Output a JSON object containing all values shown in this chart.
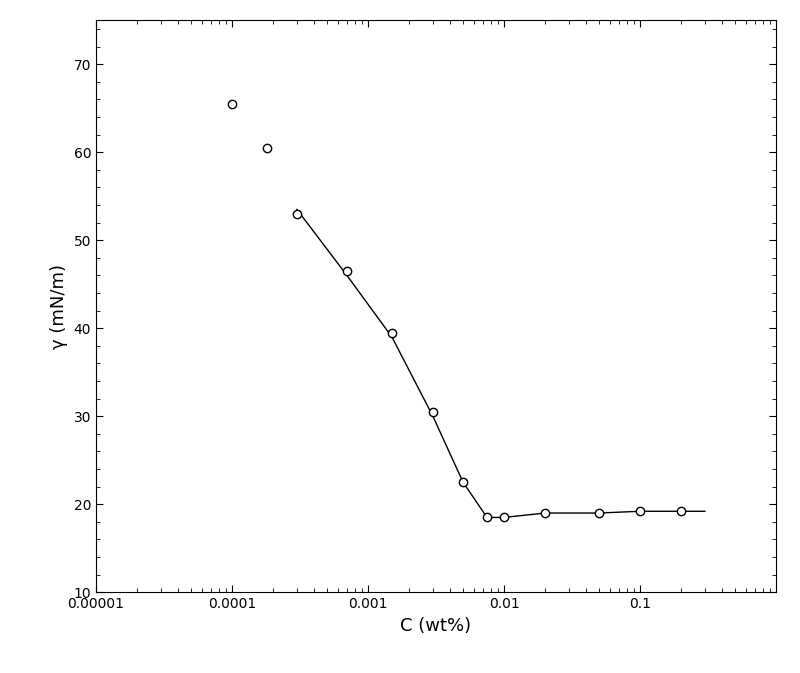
{
  "scatter_x": [
    0.0001,
    0.00018,
    0.0003,
    0.0007,
    0.0015,
    0.003,
    0.005,
    0.0075,
    0.01,
    0.02,
    0.05,
    0.1,
    0.2
  ],
  "scatter_y": [
    65.5,
    60.5,
    53.0,
    46.5,
    39.5,
    30.5,
    22.5,
    18.5,
    18.5,
    19.0,
    19.0,
    19.2,
    19.2
  ],
  "line_x": [
    0.0003,
    0.0007,
    0.0015,
    0.003,
    0.005,
    0.0075,
    0.01,
    0.02,
    0.05,
    0.1,
    0.2,
    0.3
  ],
  "line_y": [
    53.5,
    46.0,
    39.0,
    30.0,
    22.5,
    18.5,
    18.5,
    19.0,
    19.0,
    19.2,
    19.2,
    19.2
  ],
  "xlabel": "C (wt%)",
  "ylabel": "γ (mN/m)",
  "xlim": [
    1e-05,
    1.0
  ],
  "ylim": [
    10,
    75
  ],
  "yticks": [
    10,
    20,
    30,
    40,
    50,
    60,
    70
  ],
  "xticks": [
    1e-05,
    0.0001,
    0.001,
    0.01,
    0.1
  ],
  "xtick_labels": [
    "0.00001",
    "0.0001",
    "0.001",
    "0.01",
    "0.1"
  ],
  "marker_color": "black",
  "marker_facecolor": "white",
  "line_color": "black",
  "background_color": "white",
  "figsize": [
    8.0,
    6.73
  ],
  "dpi": 100
}
